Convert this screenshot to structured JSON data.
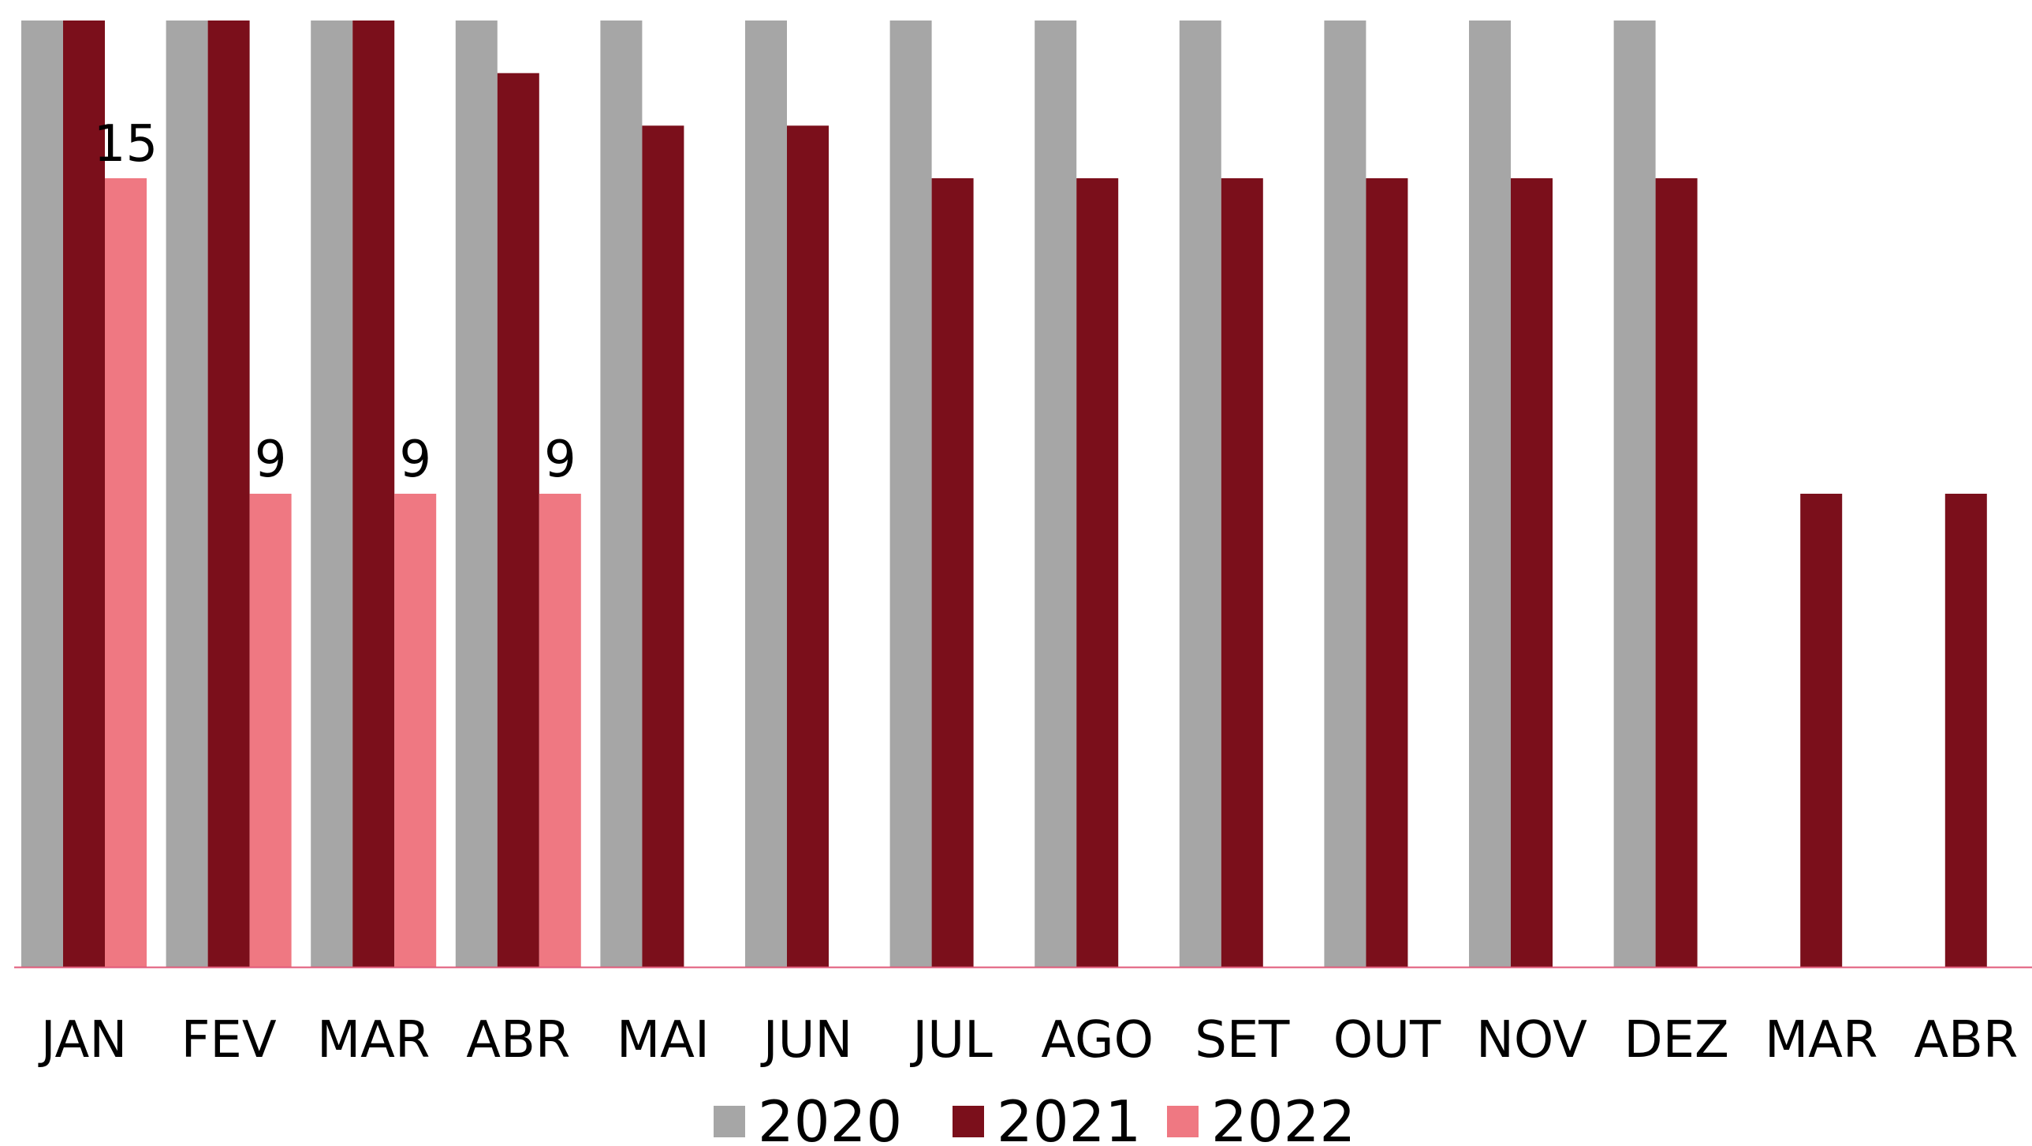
{
  "chart_data": {
    "type": "bar",
    "title": "",
    "xlabel": "",
    "ylabel": "",
    "categories": [
      "JAN",
      "FEV",
      "MAR",
      "ABR",
      "MAI",
      "JUN",
      "JUL",
      "AGO",
      "SET",
      "OUT",
      "NOV",
      "DEZ",
      "MAR",
      "ABR"
    ],
    "ylim": [
      0,
      18
    ],
    "grid": false,
    "legend_position": "bottom",
    "series": [
      {
        "name": "2020",
        "color": "#a6a6a6",
        "values": [
          18,
          18,
          18,
          18,
          18,
          18,
          18,
          18,
          18,
          18,
          18,
          18,
          null,
          null
        ]
      },
      {
        "name": "2021",
        "color": "#7b0f1b",
        "values": [
          18,
          18,
          18,
          17,
          16,
          16,
          15,
          15,
          15,
          15,
          15,
          15,
          9,
          9
        ]
      },
      {
        "name": "2022",
        "color": "#ef7882",
        "values": [
          15,
          9,
          9,
          9,
          null,
          null,
          null,
          null,
          null,
          null,
          null,
          null,
          null,
          null
        ],
        "data_labels": [
          "15",
          "9",
          "9",
          "9",
          "",
          "",
          "",
          "",
          "",
          "",
          "",
          "",
          "",
          ""
        ]
      }
    ],
    "axis_color": "#e05a7a"
  }
}
